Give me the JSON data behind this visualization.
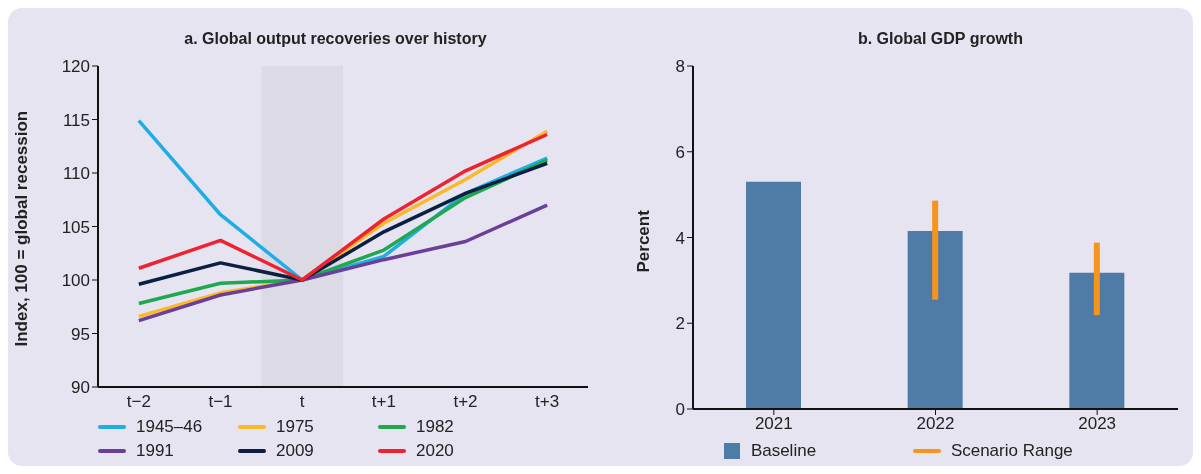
{
  "chart_data": [
    {
      "type": "line",
      "title": "a. Global output recoveries over history",
      "ylabel": "Index, 100 = global recession",
      "categories": [
        "t−2",
        "t−1",
        "t",
        "t+1",
        "t+2",
        "t+3"
      ],
      "ylim": [
        90,
        120
      ],
      "yticks": [
        90,
        95,
        100,
        105,
        110,
        115,
        120
      ],
      "legend": "bottom",
      "bands": [
        {
          "axis": "x",
          "from": "t",
          "to": "t",
          "color": "#dcdae4"
        }
      ],
      "series": [
        {
          "name": "1945–46",
          "color": "#1eaee4",
          "values": [
            114.9,
            106.1,
            100,
            102.2,
            108.1,
            111.4
          ]
        },
        {
          "name": "1975",
          "color": "#fbb829",
          "values": [
            96.6,
            98.8,
            100,
            105.3,
            109.4,
            113.9
          ]
        },
        {
          "name": "1982",
          "color": "#1fa84f",
          "values": [
            97.8,
            99.7,
            100,
            102.8,
            107.7,
            111.2
          ]
        },
        {
          "name": "1991",
          "color": "#6b3f98",
          "values": [
            96.2,
            98.6,
            100,
            101.9,
            103.6,
            107.0
          ]
        },
        {
          "name": "2009",
          "color": "#0b1f40",
          "values": [
            99.6,
            101.6,
            100,
            104.5,
            108.1,
            110.9
          ]
        },
        {
          "name": "2020",
          "color": "#ee2230",
          "values": [
            101.1,
            103.7,
            100,
            105.7,
            110.2,
            113.6
          ]
        }
      ]
    },
    {
      "type": "bar",
      "title": "b. Global GDP growth",
      "ylabel": "Percent",
      "categories": [
        "2021",
        "2022",
        "2023"
      ],
      "ylim": [
        0,
        8
      ],
      "yticks": [
        0,
        2,
        4,
        6,
        8
      ],
      "legend": "bottom",
      "series": [
        {
          "name": "Baseline",
          "color": "#4f7ba7",
          "values": [
            5.3,
            4.15,
            3.18
          ]
        },
        {
          "name": "Scenario Range",
          "color": "#f7941d",
          "base": [
            null,
            2.55,
            2.19
          ],
          "values": [
            null,
            2.31,
            1.69
          ]
        }
      ]
    }
  ]
}
